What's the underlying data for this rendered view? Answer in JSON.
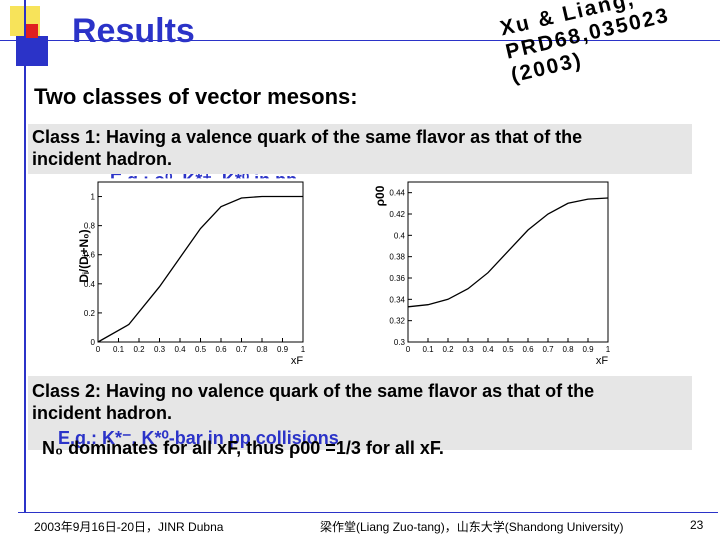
{
  "header": {
    "title": "Results",
    "subtitle": "Two classes of vector mesons:",
    "reference": [
      "Xu & Liang,",
      "PRD68,035023",
      "(2003)"
    ]
  },
  "class1": {
    "line1": "Class 1: Having a valence quark of the same flavor as that of the",
    "line2": "incident hadron.",
    "example_fragment": "E.g.: ρ⁰, K*⁺, K*⁰ in pp"
  },
  "plots": {
    "left": {
      "ylabel": "Dᵢ/(Dᵢ+N₀)",
      "xlabel": "xF",
      "yticks": [
        "0",
        "0.2",
        "0.4",
        "0.6",
        "0.8",
        "1"
      ],
      "xticks": [
        "0",
        "0.1",
        "0.2",
        "0.3",
        "0.4",
        "0.5",
        "0.6",
        "0.7",
        "0.8",
        "0.9",
        "1"
      ],
      "ylim": [
        0,
        1.1
      ],
      "curve": {
        "x": [
          0,
          0.15,
          0.3,
          0.4,
          0.5,
          0.6,
          0.7,
          0.8,
          1.0
        ],
        "y": [
          0,
          0.12,
          0.38,
          0.58,
          0.78,
          0.93,
          0.99,
          1.0,
          1.0
        ]
      }
    },
    "right": {
      "ylabel": "ρ00",
      "xlabel": "xF",
      "yticks": [
        "0.3",
        "0.32",
        "0.34",
        "0.36",
        "0.38",
        "0.4",
        "0.42",
        "0.44"
      ],
      "xticks": [
        "0",
        "0.1",
        "0.2",
        "0.3",
        "0.4",
        "0.5",
        "0.6",
        "0.7",
        "0.8",
        "0.9",
        "1"
      ],
      "ylim": [
        0.3,
        0.45
      ],
      "curve": {
        "x": [
          0,
          0.1,
          0.2,
          0.3,
          0.4,
          0.5,
          0.6,
          0.7,
          0.8,
          0.9,
          1.0
        ],
        "y": [
          0.333,
          0.335,
          0.34,
          0.35,
          0.365,
          0.385,
          0.405,
          0.42,
          0.43,
          0.434,
          0.435
        ]
      }
    }
  },
  "class2": {
    "line1": "Class 2: Having no valence quark of the same flavor as that of the",
    "line2": "incident hadron.",
    "example": "E.g.: K*⁻, K*⁰-bar in pp collisions.",
    "result": "N₀ dominates for all xF, thus ρ00 =1/3 for all xF."
  },
  "footer": {
    "left": "2003年9月16日-20日，JINR Dubna",
    "middle": "梁作堂(Liang Zuo-tang)，山东大学(Shandong University)",
    "page": "23"
  }
}
